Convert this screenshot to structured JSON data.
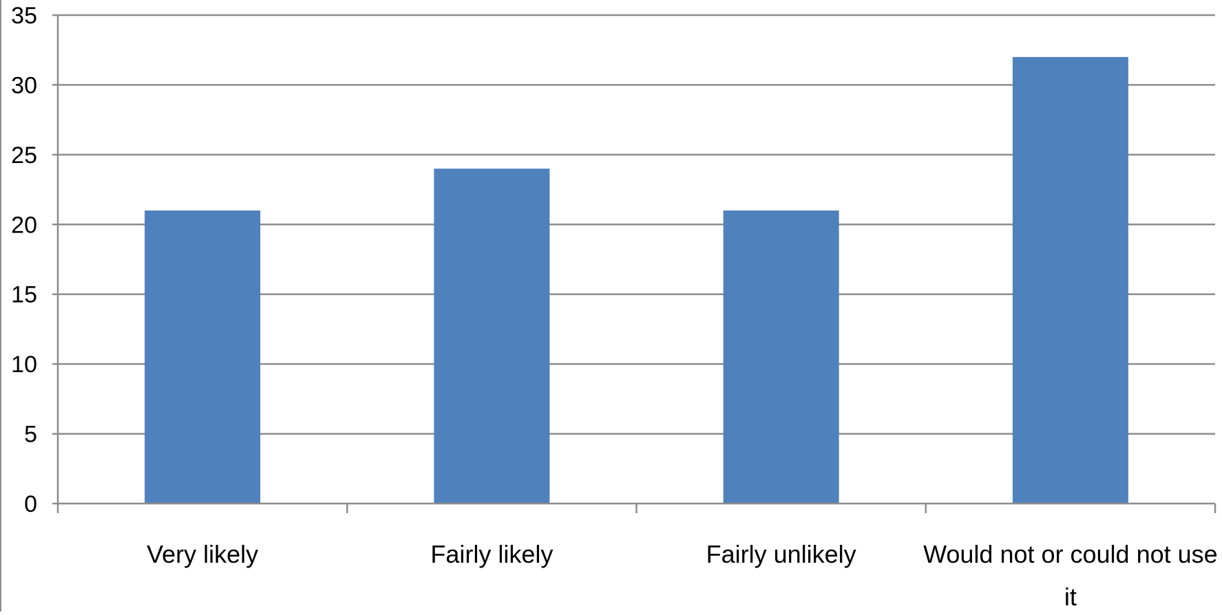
{
  "chart_data": {
    "type": "bar",
    "categories": [
      "Very likely",
      "Fairly likely",
      "Fairly unlikely",
      "Would not or could not use it"
    ],
    "values": [
      21,
      24,
      21,
      32
    ],
    "title": "",
    "xlabel": "",
    "ylabel": "",
    "ylim": [
      0,
      35
    ],
    "yticks": [
      0,
      5,
      10,
      15,
      20,
      25,
      30,
      35
    ],
    "grid": true,
    "legend": "none",
    "colors": {
      "bar": "#4f81bd",
      "grid": "#8c8c8c",
      "axis": "#8c8c8c"
    }
  }
}
